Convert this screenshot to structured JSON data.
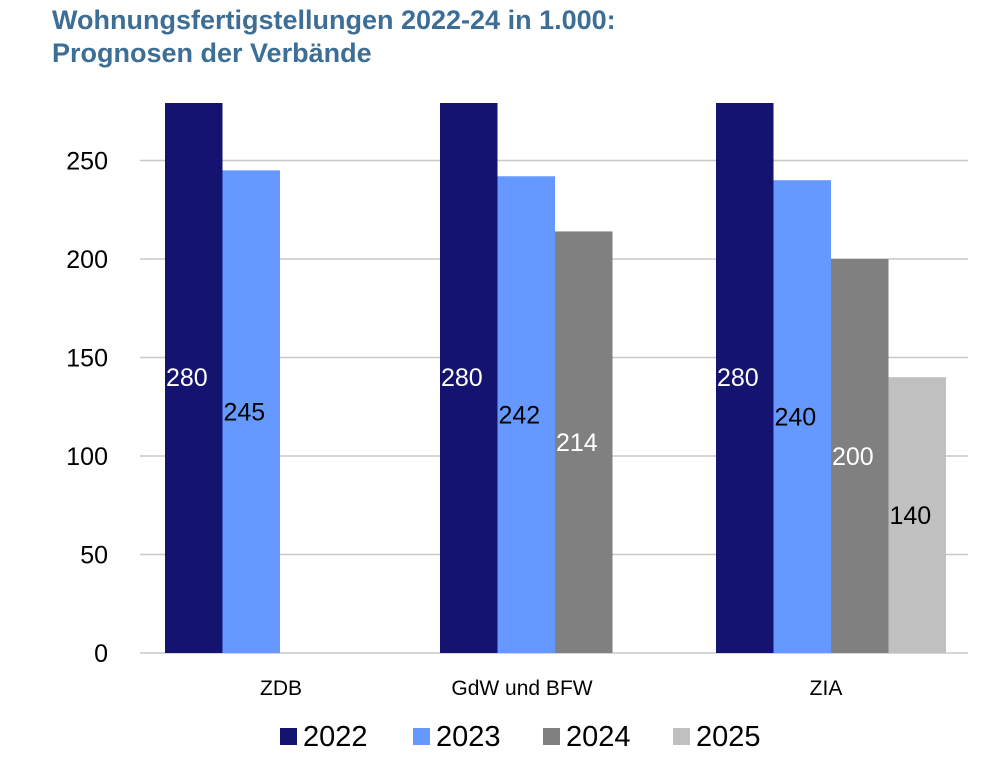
{
  "chart_data": {
    "type": "bar",
    "title": [
      "Wohnungsfertigstellungen 2022-24 in 1.000:",
      "Prognosen der Verbände"
    ],
    "categories": [
      "ZDB",
      "GdW und BFW",
      "ZIA"
    ],
    "series": [
      {
        "name": "2022",
        "values": [
          280,
          280,
          280
        ],
        "color": "#141470",
        "label_color": "#ffffff"
      },
      {
        "name": "2023",
        "values": [
          245,
          242,
          240
        ],
        "color": "#6699ff",
        "label_color": "#000000"
      },
      {
        "name": "2024",
        "values": [
          null,
          214,
          200
        ],
        "color": "#808080",
        "label_color": "#ffffff"
      },
      {
        "name": "2025",
        "values": [
          null,
          null,
          140
        ],
        "color": "#c0c0c0",
        "label_color": "#000000"
      }
    ],
    "ylim": [
      0,
      250
    ],
    "yticks": [
      0,
      50,
      100,
      150,
      200,
      250
    ],
    "grid": true,
    "legend": "bottom",
    "xlabel": "",
    "ylabel": ""
  }
}
